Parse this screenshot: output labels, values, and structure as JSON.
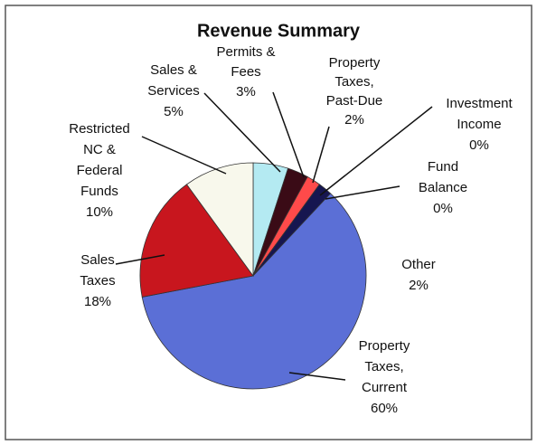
{
  "chart_data": {
    "type": "pie",
    "title": "Revenue Summary",
    "categories": [
      [
        "Sales &",
        "Services"
      ],
      [
        "Permits &",
        "Fees"
      ],
      [
        "Property",
        "Taxes,",
        "Past-Due"
      ],
      [
        "Investment",
        "Income"
      ],
      [
        "Fund",
        "Balance"
      ],
      [
        "Other"
      ],
      [
        "Property",
        "Taxes,",
        "Current"
      ],
      [
        "Sales",
        "Taxes"
      ],
      [
        "Restricted",
        "NC &",
        "Federal",
        "Funds"
      ]
    ],
    "values": [
      5,
      3,
      2,
      0,
      0,
      2,
      60,
      18,
      10
    ],
    "value_labels": [
      "5%",
      "3%",
      "2%",
      "0%",
      "0%",
      "2%",
      "60%",
      "18%",
      "10%"
    ],
    "colors": [
      "#b4eaf2",
      "#3a0b16",
      "#ff4a4a",
      "#7a7a7a",
      "#222222",
      "#161650",
      "#5b6fd6",
      "#c8161e",
      "#f8f8ec"
    ]
  }
}
